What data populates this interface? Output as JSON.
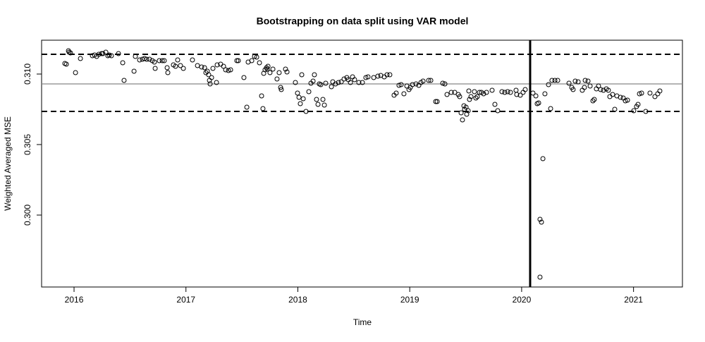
{
  "chart_data": {
    "type": "scatter",
    "title": "Bootstrapping on data split using VAR model",
    "xlabel": "Time",
    "ylabel": "Weighted Averaged MSE",
    "xlim": [
      2015.71,
      2021.437
    ],
    "ylim": [
      0.2949,
      0.3124
    ],
    "xticks": [
      2016,
      2017,
      2018,
      2019,
      2020,
      2021
    ],
    "yticks": [
      {
        "value": 0.3,
        "label": "0.300"
      },
      {
        "value": 0.305,
        "label": "0.305"
      },
      {
        "value": 0.31,
        "label": "0.310"
      }
    ],
    "color": "#000000",
    "hlines": [
      {
        "value": 0.3114,
        "style": "dashed"
      },
      {
        "value": 0.30735,
        "style": "dashed"
      },
      {
        "value": 0.3093,
        "style": "solid"
      }
    ],
    "vline": 2020.076,
    "x": [
      2015.918,
      2015.931,
      2015.95,
      2015.956,
      2015.968,
      2016.013,
      2016.057,
      2016.164,
      2016.183,
      2016.202,
      2016.221,
      2016.246,
      2016.258,
      2016.284,
      2016.302,
      2016.315,
      2016.334,
      2016.397,
      2016.435,
      2016.447,
      2016.536,
      2016.548,
      2016.586,
      2016.611,
      2016.63,
      2016.649,
      2016.674,
      2016.699,
      2016.718,
      2016.725,
      2016.762,
      2016.788,
      2016.806,
      2016.832,
      2016.838,
      2016.888,
      2016.907,
      2016.926,
      2016.951,
      2016.977,
      2017.058,
      2017.103,
      2017.14,
      2017.166,
      2017.178,
      2017.191,
      2017.203,
      2017.21,
      2017.216,
      2017.229,
      2017.241,
      2017.273,
      2017.279,
      2017.31,
      2017.336,
      2017.355,
      2017.38,
      2017.399,
      2017.455,
      2017.468,
      2017.518,
      2017.544,
      2017.556,
      2017.588,
      2017.613,
      2017.632,
      2017.657,
      2017.676,
      2017.688,
      2017.695,
      2017.707,
      2017.72,
      2017.726,
      2017.733,
      2017.751,
      2017.777,
      2017.814,
      2017.833,
      2017.846,
      2017.852,
      2017.89,
      2017.903,
      2017.978,
      2017.997,
      2018.01,
      2018.022,
      2018.035,
      2018.048,
      2018.073,
      2018.098,
      2018.117,
      2018.136,
      2018.148,
      2018.167,
      2018.18,
      2018.192,
      2018.205,
      2018.224,
      2018.237,
      2018.249,
      2018.3,
      2018.312,
      2018.337,
      2018.363,
      2018.388,
      2018.413,
      2018.438,
      2018.451,
      2018.47,
      2018.489,
      2018.507,
      2018.545,
      2018.577,
      2018.608,
      2018.627,
      2018.678,
      2018.715,
      2018.741,
      2018.772,
      2018.797,
      2018.822,
      2018.86,
      2018.879,
      2018.904,
      2018.923,
      2018.948,
      2018.974,
      2018.993,
      2019.005,
      2019.024,
      2019.056,
      2019.081,
      2019.1,
      2019.119,
      2019.169,
      2019.188,
      2019.232,
      2019.245,
      2019.295,
      2019.314,
      2019.333,
      2019.371,
      2019.402,
      2019.434,
      2019.446,
      2019.459,
      2019.471,
      2019.484,
      2019.49,
      2019.503,
      2019.509,
      2019.522,
      2019.528,
      2019.534,
      2019.547,
      2019.578,
      2019.591,
      2019.604,
      2019.623,
      2019.641,
      2019.66,
      2019.686,
      2019.736,
      2019.761,
      2019.786,
      2019.824,
      2019.849,
      2019.875,
      2019.9,
      2019.95,
      2019.956,
      2019.988,
      2020.013,
      2020.032,
      2020.101,
      2020.127,
      2020.139,
      2020.152,
      2020.164,
      2020.177,
      2020.19,
      2020.164,
      2020.208,
      2020.24,
      2020.259,
      2020.271,
      2020.297,
      2020.322,
      2020.423,
      2020.448,
      2020.46,
      2020.479,
      2020.505,
      2020.542,
      2020.561,
      2020.568,
      2020.593,
      2020.612,
      2020.637,
      2020.649,
      2020.668,
      2020.687,
      2020.706,
      2020.731,
      2020.757,
      2020.775,
      2020.788,
      2020.813,
      2020.832,
      2020.851,
      2020.883,
      2020.908,
      2020.927,
      2020.946,
      2021.002,
      2021.027,
      2021.04,
      2021.053,
      2021.072,
      2021.109,
      2021.147,
      2021.191,
      2021.216,
      2021.235
    ],
    "y": [
      0.31075,
      0.3107,
      0.31165,
      0.31155,
      0.3115,
      0.3101,
      0.3111,
      0.3113,
      0.31135,
      0.31125,
      0.3114,
      0.31145,
      0.31145,
      0.31155,
      0.3113,
      0.31135,
      0.3113,
      0.31145,
      0.3108,
      0.30955,
      0.3102,
      0.31125,
      0.311,
      0.31105,
      0.3111,
      0.31105,
      0.31105,
      0.31095,
      0.31085,
      0.3104,
      0.31095,
      0.31095,
      0.31095,
      0.31045,
      0.3101,
      0.31065,
      0.31055,
      0.311,
      0.3106,
      0.3104,
      0.311,
      0.3106,
      0.3105,
      0.31045,
      0.3101,
      0.3102,
      0.30995,
      0.30955,
      0.3093,
      0.30975,
      0.3104,
      0.3094,
      0.31065,
      0.3107,
      0.31055,
      0.3103,
      0.31025,
      0.3103,
      0.31095,
      0.31095,
      0.30975,
      0.30765,
      0.31085,
      0.31095,
      0.31125,
      0.3112,
      0.3108,
      0.30845,
      0.30755,
      0.31005,
      0.3103,
      0.31045,
      0.31035,
      0.31055,
      0.3101,
      0.31035,
      0.30965,
      0.3101,
      0.30905,
      0.3089,
      0.31035,
      0.31015,
      0.3094,
      0.30865,
      0.30835,
      0.3079,
      0.30995,
      0.30825,
      0.30735,
      0.30875,
      0.30935,
      0.3095,
      0.30995,
      0.3082,
      0.30785,
      0.3093,
      0.30925,
      0.3082,
      0.3078,
      0.30935,
      0.3091,
      0.30945,
      0.3093,
      0.3094,
      0.30945,
      0.30965,
      0.30975,
      0.3096,
      0.3094,
      0.3098,
      0.3096,
      0.3094,
      0.3094,
      0.30975,
      0.3098,
      0.30975,
      0.30985,
      0.3099,
      0.3098,
      0.30995,
      0.30995,
      0.3085,
      0.30865,
      0.3092,
      0.30925,
      0.3086,
      0.30915,
      0.3089,
      0.30905,
      0.30925,
      0.3093,
      0.3092,
      0.3094,
      0.3095,
      0.30955,
      0.30955,
      0.30805,
      0.30805,
      0.30935,
      0.3093,
      0.30855,
      0.3087,
      0.3087,
      0.30855,
      0.3084,
      0.30725,
      0.30675,
      0.30775,
      0.3075,
      0.30765,
      0.30715,
      0.3074,
      0.3088,
      0.3082,
      0.3084,
      0.30875,
      0.3083,
      0.3084,
      0.3087,
      0.3087,
      0.3086,
      0.3087,
      0.30885,
      0.30785,
      0.3074,
      0.30875,
      0.3087,
      0.30875,
      0.3087,
      0.30885,
      0.30855,
      0.3085,
      0.3087,
      0.3089,
      0.30865,
      0.30845,
      0.3079,
      0.30795,
      0.2997,
      0.2995,
      0.304,
      0.2956,
      0.3086,
      0.30925,
      0.30755,
      0.30955,
      0.30955,
      0.30955,
      0.30935,
      0.30905,
      0.3089,
      0.3095,
      0.30945,
      0.30885,
      0.30905,
      0.30955,
      0.3095,
      0.30915,
      0.3081,
      0.3082,
      0.30895,
      0.30915,
      0.3089,
      0.30885,
      0.30895,
      0.30885,
      0.3084,
      0.30855,
      0.3075,
      0.30845,
      0.30835,
      0.3083,
      0.3081,
      0.30815,
      0.3074,
      0.3077,
      0.30785,
      0.3086,
      0.30865,
      0.30735,
      0.30865,
      0.3084,
      0.3086,
      0.3088
    ]
  }
}
